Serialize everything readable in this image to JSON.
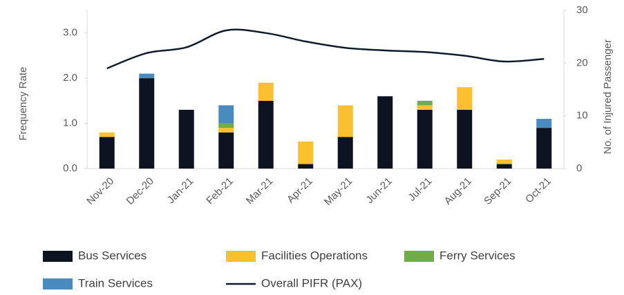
{
  "chart_data": {
    "type": "bar",
    "stacked": true,
    "ylabel": "Frequency Rate",
    "y2label": "No. of Injured Passenger",
    "categories": [
      "Nov-20",
      "Dec-20",
      "Jan-21",
      "Feb-21",
      "Mar-21",
      "Apr-21",
      "May-21",
      "Jun-21",
      "Jul-21",
      "Aug-21",
      "Sep-21",
      "Oct-21"
    ],
    "series": [
      {
        "name": "Bus Services",
        "color": "#0d1321",
        "values": [
          0.7,
          2.0,
          1.3,
          0.8,
          1.5,
          0.1,
          0.7,
          1.6,
          1.3,
          1.3,
          0.1,
          0.9
        ]
      },
      {
        "name": "Facilities Operations",
        "color": "#fbc02d",
        "values": [
          0.1,
          null,
          null,
          0.1,
          0.4,
          0.5,
          0.7,
          null,
          0.1,
          0.5,
          0.1,
          null
        ]
      },
      {
        "name": "Ferry Services",
        "color": "#70ad47",
        "values": [
          null,
          null,
          null,
          0.1,
          null,
          null,
          null,
          null,
          0.1,
          null,
          null,
          null
        ]
      },
      {
        "name": "Train Services",
        "color": "#4a8bbf",
        "values": [
          null,
          0.1,
          null,
          0.4,
          null,
          null,
          null,
          null,
          null,
          null,
          null,
          0.2
        ]
      },
      {
        "name": "Overall PIFR (PAX)",
        "color": "#0d1b2a",
        "type": "line",
        "axis": "y2",
        "values": [
          19,
          21.9,
          23,
          26.2,
          25.7,
          24.1,
          22.9,
          22.4,
          22.1,
          21.4,
          20.3,
          20.8
        ]
      }
    ],
    "ylim": [
      0,
      3.5
    ],
    "yticks": [
      {
        "value": 0,
        "label": "0.0"
      },
      {
        "value": 1,
        "label": "1.0"
      },
      {
        "value": 2,
        "label": "2.0"
      },
      {
        "value": 3,
        "label": "3.0"
      }
    ],
    "y2lim": [
      0,
      30
    ],
    "y2ticks": [
      0,
      10,
      20,
      30
    ],
    "grid": false,
    "legend": "bottom"
  }
}
